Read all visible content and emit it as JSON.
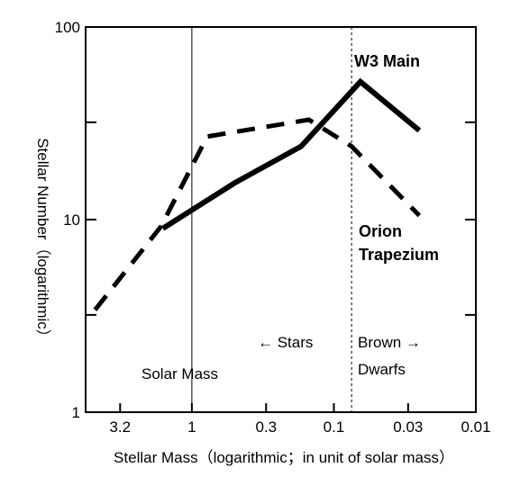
{
  "chart_data": {
    "type": "line",
    "xlabel": "Stellar Mass（logarithmic；in unit of solar mass）",
    "ylabel": "Stellar Number（logarithmic）",
    "x_scale": "log",
    "x_reversed": true,
    "y_scale": "log",
    "xlim": [
      5.6,
      0.01
    ],
    "ylim": [
      1,
      100
    ],
    "x_ticks": [
      {
        "value": 3.2,
        "label": "3.2"
      },
      {
        "value": 1,
        "label": "1"
      },
      {
        "value": 0.3,
        "label": "0.3"
      },
      {
        "value": 0.1,
        "label": "0.1"
      },
      {
        "value": 0.03,
        "label": "0.03"
      },
      {
        "value": 0.01,
        "label": "0.01"
      }
    ],
    "y_ticks": [
      {
        "value": 100,
        "label": "100"
      },
      {
        "value": 10,
        "label": "10"
      },
      {
        "value": 1,
        "label": "1"
      }
    ],
    "y_minor_ticks": [
      3.2,
      32
    ],
    "grid": false,
    "series": [
      {
        "name": "W3 Main",
        "style": "solid",
        "color": "#000000",
        "x": [
          1.6,
          0.5,
          0.17,
          0.065,
          0.025
        ],
        "y": [
          9.0,
          15.5,
          24,
          52,
          29
        ]
      },
      {
        "name": "Orion Trapezium",
        "style": "dashed",
        "color": "#000000",
        "x": [
          4.8,
          1.65,
          0.78,
          0.15,
          0.075,
          0.025
        ],
        "y": [
          3.4,
          9.2,
          27,
          33,
          24,
          10.5
        ]
      }
    ],
    "series_labels": {
      "w3": "W3 Main",
      "orion_line1": "Orion",
      "orion_line2": "Trapezium"
    },
    "reference_lines": [
      {
        "x": 1,
        "style": "solid",
        "label": "Solar Mass"
      },
      {
        "x": 0.075,
        "style": "dotted"
      }
    ],
    "annotations": {
      "stars": "← Stars",
      "brown": "Brown →",
      "dwarfs": "Dwarfs"
    }
  }
}
